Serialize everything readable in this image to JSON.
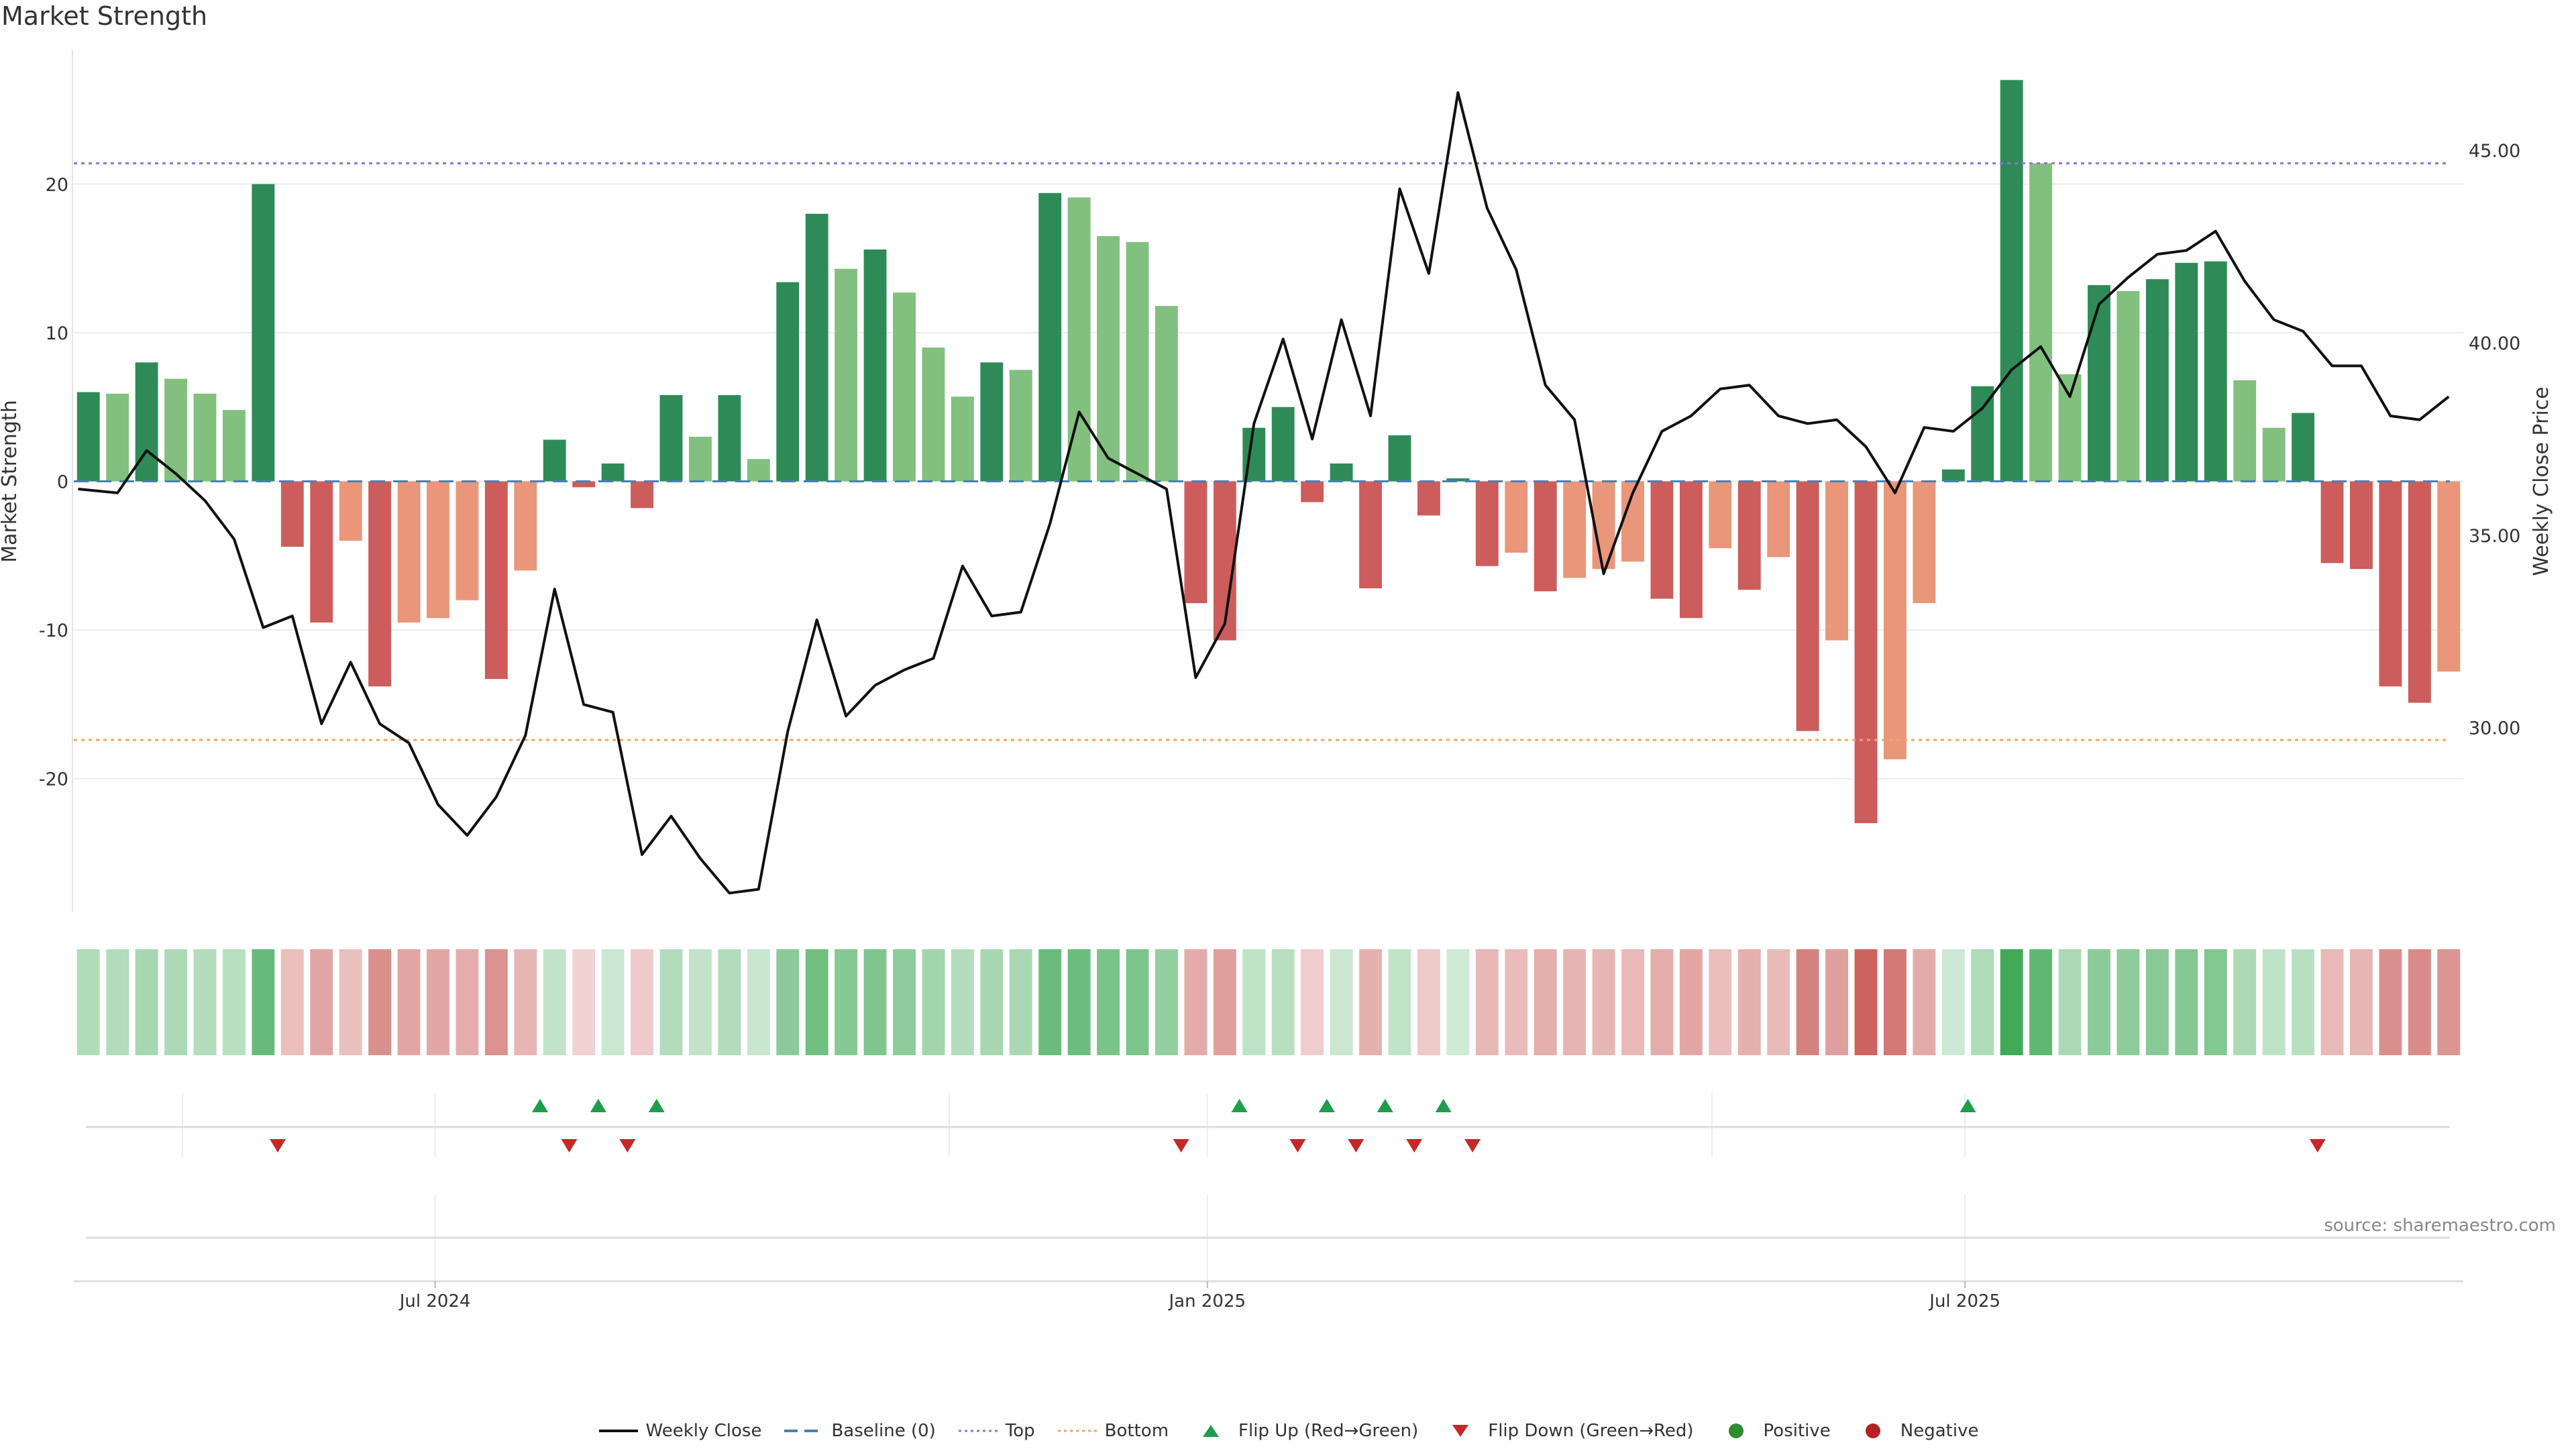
{
  "title": "Market Strength",
  "source": "source: sharemaestro.com",
  "chart_data": {
    "type": "bar",
    "title": "Market Strength",
    "ylabel_left": "Market Strength",
    "ylabel_right": "Weekly Close Price",
    "ylim_left": [
      -29,
      29
    ],
    "ylim_right": [
      25.2,
      47.6
    ],
    "yticks_left": [
      20,
      10,
      0,
      -10,
      -20
    ],
    "yticks_right": [
      "45.00",
      "40.00",
      "35.00",
      "30.00"
    ],
    "x_tick_labels": [
      "Jul 2024",
      "Jan 2025",
      "Jul 2025"
    ],
    "x_tick_week_index": [
      12.4,
      38.9,
      64.9
    ],
    "top_line": 21.4,
    "bottom_line": -17.4,
    "baseline": 0,
    "strength": [
      6.0,
      5.9,
      8.0,
      6.9,
      5.9,
      4.8,
      20.0,
      -4.4,
      -9.5,
      -4.0,
      -13.8,
      -9.5,
      -9.2,
      -8.0,
      -13.3,
      -6.0,
      2.8,
      -0.4,
      1.2,
      -1.8,
      5.8,
      3.0,
      5.8,
      1.5,
      13.4,
      18.0,
      14.3,
      15.6,
      12.7,
      9.0,
      5.7,
      8.0,
      7.5,
      19.4,
      19.1,
      16.5,
      16.1,
      11.8,
      -8.2,
      -10.7,
      3.6,
      5.0,
      -1.4,
      1.2,
      -7.2,
      3.1,
      -2.3,
      0.2,
      -5.7,
      -4.8,
      -7.4,
      -6.5,
      -5.9,
      -5.4,
      -7.9,
      -9.2,
      -4.5,
      -7.3,
      -5.1,
      -16.8,
      -10.7,
      -23.0,
      -18.7,
      -8.2,
      0.8,
      6.4,
      27.0,
      21.4,
      7.2,
      13.2,
      12.8,
      13.6,
      14.7,
      14.8,
      6.8,
      3.6,
      4.6,
      -5.5,
      -5.9,
      -13.8,
      -14.9,
      -12.8
    ],
    "weekly_close": [
      36.2,
      36.1,
      37.2,
      36.6,
      35.9,
      34.9,
      32.6,
      32.9,
      30.1,
      31.7,
      30.1,
      29.6,
      28.0,
      27.2,
      28.2,
      29.8,
      33.6,
      30.6,
      30.4,
      26.7,
      27.7,
      26.6,
      25.7,
      25.8,
      29.9,
      32.8,
      30.3,
      31.1,
      31.5,
      31.8,
      34.2,
      32.9,
      33.0,
      35.3,
      38.2,
      37.0,
      36.6,
      36.2,
      31.3,
      32.7,
      37.9,
      40.1,
      37.5,
      40.6,
      38.1,
      44.0,
      41.8,
      46.5,
      43.5,
      41.9,
      38.9,
      38.0,
      34.0,
      36.1,
      37.7,
      38.1,
      38.8,
      38.9,
      38.1,
      37.9,
      38.0,
      37.3,
      36.1,
      37.8,
      37.7,
      38.3,
      39.3,
      39.9,
      38.6,
      41.0,
      41.7,
      42.3,
      42.4,
      42.9,
      41.6,
      40.6,
      40.3,
      39.4,
      39.4,
      38.1,
      38.0,
      38.6
    ],
    "flip_up_week_index": [
      16,
      18,
      20,
      40,
      43,
      45,
      47,
      65
    ],
    "flip_down_week_index": [
      7,
      17,
      19,
      38,
      42,
      44,
      46,
      48,
      77
    ],
    "colors": {
      "positive_strong": "#2e8b57",
      "positive_mild": "#82c07f",
      "negative_strong": "#cd5c5c",
      "negative_mild": "#e9967a",
      "price_line": "#111111",
      "baseline": "#4682b4",
      "top_line": "#9370db",
      "bottom_line": "#f4a460",
      "flip_up": "#1e9e4a",
      "flip_down": "#c62828",
      "positive_dot": "#2e8b2e",
      "negative_dot": "#b22222"
    }
  },
  "legend": [
    {
      "key": "weekly_close",
      "label": "Weekly Close"
    },
    {
      "key": "baseline",
      "label": "Baseline (0)"
    },
    {
      "key": "top",
      "label": "Top"
    },
    {
      "key": "bottom",
      "label": "Bottom"
    },
    {
      "key": "flip_up",
      "label": "Flip Up (Red→Green)"
    },
    {
      "key": "flip_down",
      "label": "Flip Down (Green→Red)"
    },
    {
      "key": "positive",
      "label": "Positive"
    },
    {
      "key": "negative",
      "label": "Negative"
    }
  ]
}
